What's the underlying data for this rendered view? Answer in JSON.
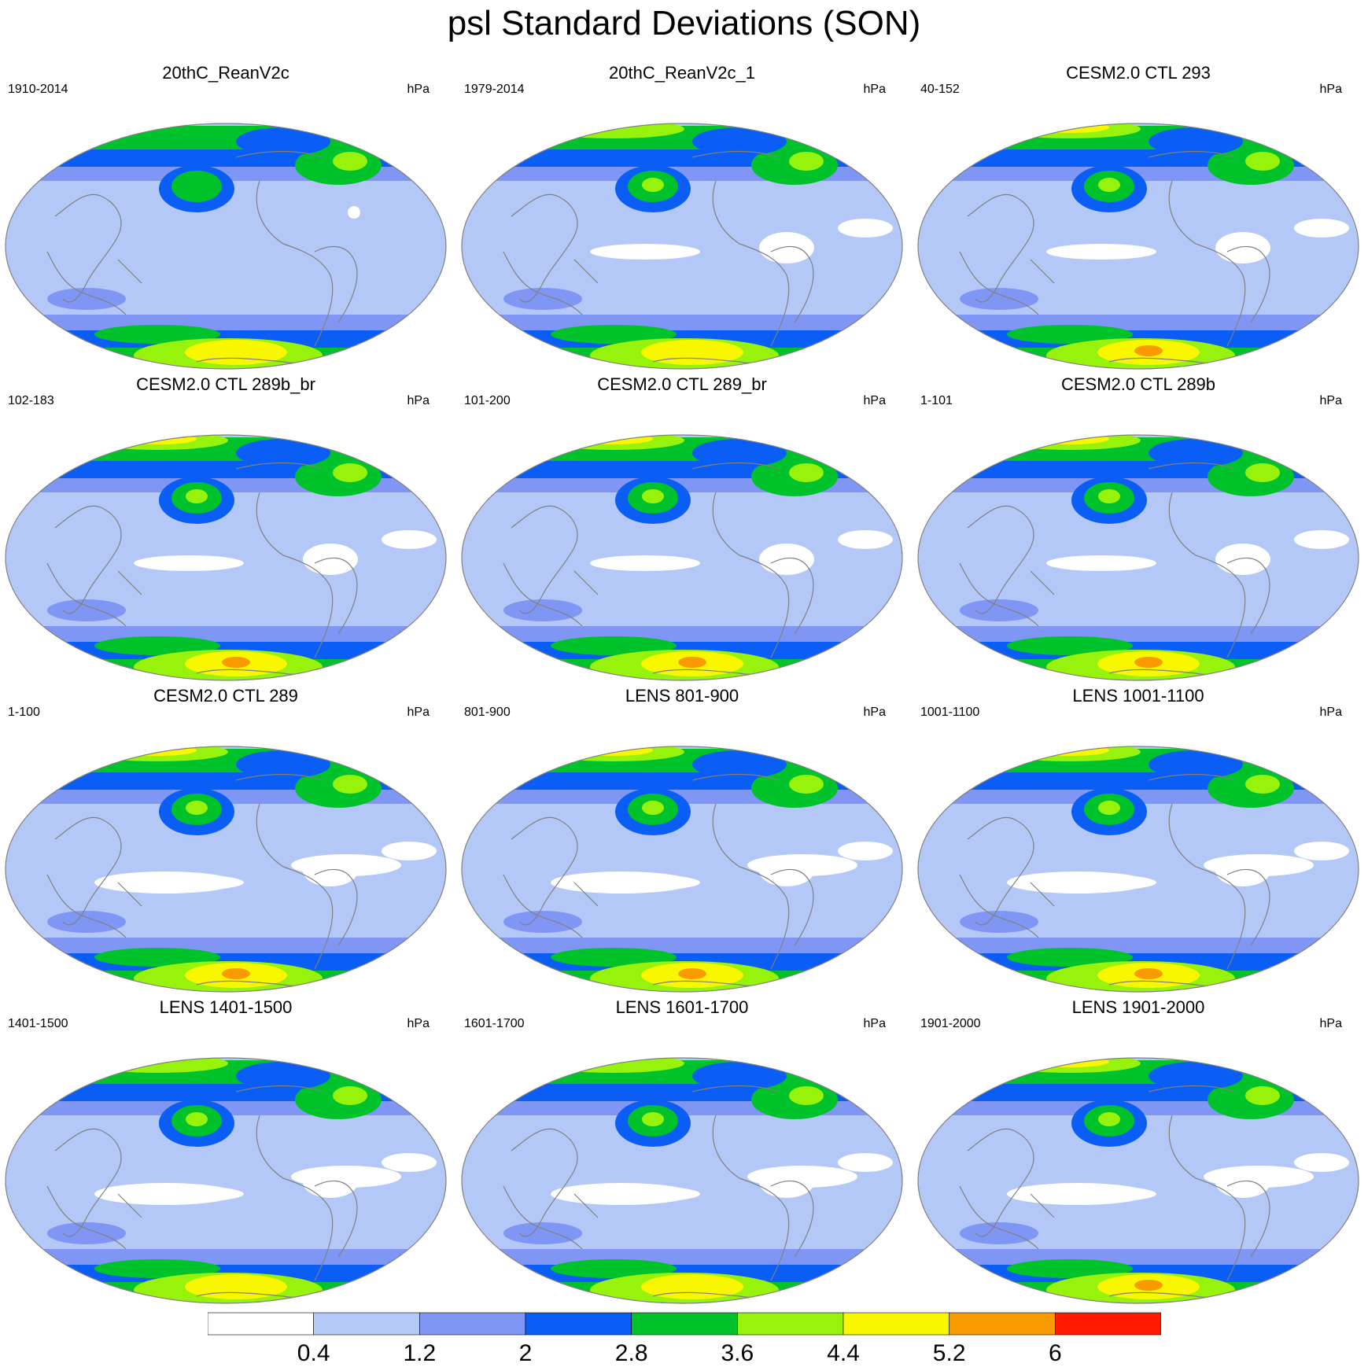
{
  "title": "psl Standard Deviations (SON)",
  "units_label": "hPa",
  "panels": [
    {
      "title": "20thC_ReanV2c",
      "period": "1910-2014"
    },
    {
      "title": "20thC_ReanV2c_1",
      "period": "1979-2014"
    },
    {
      "title": "CESM2.0 CTL 293",
      "period": "40-152"
    },
    {
      "title": "CESM2.0 CTL 289b_br",
      "period": "102-183"
    },
    {
      "title": "CESM2.0 CTL 289_br",
      "period": "101-200"
    },
    {
      "title": "CESM2.0 CTL 289b",
      "period": "1-101"
    },
    {
      "title": "CESM2.0 CTL 289",
      "period": "1-100"
    },
    {
      "title": "LENS 801-900",
      "period": "801-900"
    },
    {
      "title": "LENS 1001-1100",
      "period": "1001-1100"
    },
    {
      "title": "LENS 1401-1500",
      "period": "1401-1500"
    },
    {
      "title": "LENS 1601-1700",
      "period": "1601-1700"
    },
    {
      "title": "LENS 1901-2000",
      "period": "1901-2000"
    }
  ],
  "legend": {
    "levels": [
      "0.4",
      "1.2",
      "2",
      "2.8",
      "3.6",
      "4.4",
      "5.2",
      "6"
    ],
    "colors": [
      "#ffffff",
      "#b4c8f8",
      "#7f96f5",
      "#0a5ef5",
      "#00c22b",
      "#97f20c",
      "#f8f700",
      "#f99a00",
      "#ff1a00"
    ]
  },
  "map_style": {
    "coastline_color": "#808080",
    "outline_color": "#808080"
  }
}
